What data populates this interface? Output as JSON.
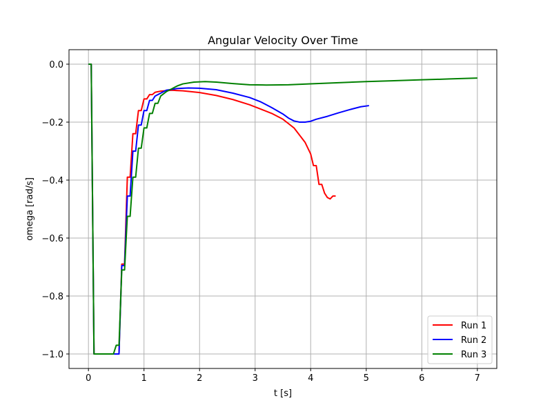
{
  "chart_data": {
    "type": "line",
    "title": "Angular Velocity Over Time",
    "xlabel": "t [s]",
    "ylabel": "omega [rad/s]",
    "xlim": [
      -0.35,
      7.35
    ],
    "ylim": [
      -1.05,
      0.05
    ],
    "xticks": [
      0,
      1,
      2,
      3,
      4,
      5,
      6,
      7
    ],
    "xtick_labels": [
      "0",
      "1",
      "2",
      "3",
      "4",
      "5",
      "6",
      "7"
    ],
    "yticks": [
      0.0,
      -0.2,
      -0.4,
      -0.6,
      -0.8,
      -1.0
    ],
    "ytick_labels": [
      "0.0",
      "−0.2",
      "−0.4",
      "−0.6",
      "−0.8",
      "−1.0"
    ],
    "grid": true,
    "legend_position": "bottom-right",
    "series": [
      {
        "name": "Run 1",
        "color": "#ff0000",
        "points": [
          [
            0.0,
            0.0
          ],
          [
            0.05,
            0.0
          ],
          [
            0.1,
            -1.0
          ],
          [
            0.55,
            -1.0
          ],
          [
            0.6,
            -0.69
          ],
          [
            0.65,
            -0.69
          ],
          [
            0.7,
            -0.39
          ],
          [
            0.75,
            -0.39
          ],
          [
            0.8,
            -0.24
          ],
          [
            0.85,
            -0.24
          ],
          [
            0.9,
            -0.16
          ],
          [
            0.95,
            -0.16
          ],
          [
            1.0,
            -0.12
          ],
          [
            1.05,
            -0.12
          ],
          [
            1.1,
            -0.105
          ],
          [
            1.15,
            -0.105
          ],
          [
            1.2,
            -0.097
          ],
          [
            1.3,
            -0.093
          ],
          [
            1.5,
            -0.09
          ],
          [
            1.7,
            -0.092
          ],
          [
            2.0,
            -0.098
          ],
          [
            2.3,
            -0.108
          ],
          [
            2.6,
            -0.122
          ],
          [
            2.9,
            -0.14
          ],
          [
            3.1,
            -0.155
          ],
          [
            3.3,
            -0.17
          ],
          [
            3.5,
            -0.19
          ],
          [
            3.6,
            -0.205
          ],
          [
            3.7,
            -0.22
          ],
          [
            3.8,
            -0.245
          ],
          [
            3.9,
            -0.27
          ],
          [
            4.0,
            -0.31
          ],
          [
            4.05,
            -0.35
          ],
          [
            4.1,
            -0.35
          ],
          [
            4.15,
            -0.415
          ],
          [
            4.2,
            -0.415
          ],
          [
            4.25,
            -0.445
          ],
          [
            4.3,
            -0.46
          ],
          [
            4.35,
            -0.465
          ],
          [
            4.4,
            -0.455
          ],
          [
            4.45,
            -0.455
          ]
        ]
      },
      {
        "name": "Run 2",
        "color": "#0000ff",
        "points": [
          [
            0.0,
            0.0
          ],
          [
            0.05,
            0.0
          ],
          [
            0.1,
            -1.0
          ],
          [
            0.55,
            -1.0
          ],
          [
            0.6,
            -0.695
          ],
          [
            0.65,
            -0.695
          ],
          [
            0.7,
            -0.455
          ],
          [
            0.75,
            -0.455
          ],
          [
            0.8,
            -0.3
          ],
          [
            0.85,
            -0.3
          ],
          [
            0.9,
            -0.21
          ],
          [
            0.95,
            -0.21
          ],
          [
            1.0,
            -0.16
          ],
          [
            1.05,
            -0.16
          ],
          [
            1.1,
            -0.125
          ],
          [
            1.15,
            -0.125
          ],
          [
            1.2,
            -0.11
          ],
          [
            1.3,
            -0.1
          ],
          [
            1.4,
            -0.09
          ],
          [
            1.6,
            -0.084
          ],
          [
            1.8,
            -0.082
          ],
          [
            2.0,
            -0.083
          ],
          [
            2.3,
            -0.088
          ],
          [
            2.6,
            -0.1
          ],
          [
            2.9,
            -0.115
          ],
          [
            3.1,
            -0.13
          ],
          [
            3.3,
            -0.15
          ],
          [
            3.5,
            -0.172
          ],
          [
            3.6,
            -0.186
          ],
          [
            3.7,
            -0.196
          ],
          [
            3.8,
            -0.2
          ],
          [
            3.9,
            -0.2
          ],
          [
            4.0,
            -0.197
          ],
          [
            4.1,
            -0.19
          ],
          [
            4.3,
            -0.18
          ],
          [
            4.5,
            -0.168
          ],
          [
            4.7,
            -0.157
          ],
          [
            4.9,
            -0.147
          ],
          [
            5.05,
            -0.143
          ]
        ]
      },
      {
        "name": "Run 3",
        "color": "#008000",
        "points": [
          [
            0.0,
            0.0
          ],
          [
            0.05,
            0.0
          ],
          [
            0.1,
            -1.0
          ],
          [
            0.45,
            -1.0
          ],
          [
            0.5,
            -0.97
          ],
          [
            0.55,
            -0.97
          ],
          [
            0.6,
            -0.71
          ],
          [
            0.65,
            -0.71
          ],
          [
            0.7,
            -0.525
          ],
          [
            0.75,
            -0.525
          ],
          [
            0.8,
            -0.39
          ],
          [
            0.85,
            -0.39
          ],
          [
            0.9,
            -0.29
          ],
          [
            0.95,
            -0.29
          ],
          [
            1.0,
            -0.22
          ],
          [
            1.05,
            -0.22
          ],
          [
            1.1,
            -0.17
          ],
          [
            1.15,
            -0.17
          ],
          [
            1.2,
            -0.135
          ],
          [
            1.25,
            -0.135
          ],
          [
            1.3,
            -0.11
          ],
          [
            1.4,
            -0.095
          ],
          [
            1.5,
            -0.085
          ],
          [
            1.6,
            -0.075
          ],
          [
            1.7,
            -0.068
          ],
          [
            1.9,
            -0.062
          ],
          [
            2.1,
            -0.06
          ],
          [
            2.3,
            -0.062
          ],
          [
            2.6,
            -0.067
          ],
          [
            2.9,
            -0.071
          ],
          [
            3.2,
            -0.072
          ],
          [
            3.6,
            -0.071
          ],
          [
            4.0,
            -0.068
          ],
          [
            4.5,
            -0.064
          ],
          [
            5.0,
            -0.06
          ],
          [
            5.5,
            -0.057
          ],
          [
            6.0,
            -0.054
          ],
          [
            6.5,
            -0.051
          ],
          [
            7.0,
            -0.048
          ]
        ]
      }
    ]
  }
}
